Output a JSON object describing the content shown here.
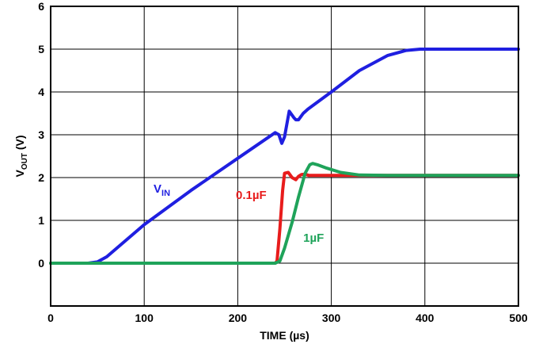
{
  "chart_data": {
    "type": "line",
    "title": "",
    "xlabel": "TIME (µs)",
    "ylabel": {
      "main": "V",
      "sub": "OUT",
      "unit": " (V)"
    },
    "xlim": [
      0,
      500
    ],
    "ylim": [
      -1,
      6
    ],
    "xticks": [
      0,
      100,
      200,
      300,
      400,
      500
    ],
    "yticks": [
      0,
      1,
      2,
      3,
      4,
      5,
      6
    ],
    "grid": true,
    "series": [
      {
        "name": {
          "main": "V",
          "sub": "IN"
        },
        "color": "#1f1fe0",
        "x": [
          0,
          20,
          40,
          50,
          60,
          100,
          150,
          200,
          240,
          244,
          247,
          250,
          255,
          260,
          262,
          265,
          270,
          275,
          300,
          330,
          360,
          380,
          395,
          400,
          420,
          450,
          500
        ],
        "y": [
          0,
          0,
          0,
          0.03,
          0.15,
          0.9,
          1.7,
          2.45,
          3.05,
          3.0,
          2.8,
          2.95,
          3.55,
          3.4,
          3.35,
          3.35,
          3.5,
          3.6,
          4.0,
          4.5,
          4.85,
          4.97,
          5.0,
          5.0,
          5.0,
          5.0,
          5.0
        ]
      },
      {
        "name": "0.1µF",
        "color": "#e81c1c",
        "x": [
          0,
          100,
          200,
          240,
          242,
          245,
          248,
          250,
          254,
          258,
          262,
          265,
          268,
          272,
          276,
          280,
          300,
          350,
          400,
          450,
          500
        ],
        "y": [
          0,
          0,
          0,
          0,
          0.05,
          0.8,
          1.7,
          2.1,
          2.12,
          2.0,
          1.95,
          2.03,
          2.07,
          2.08,
          2.05,
          2.05,
          2.05,
          2.05,
          2.05,
          2.05,
          2.05
        ]
      },
      {
        "name": "1µF",
        "color": "#1fa35a",
        "x": [
          0,
          100,
          200,
          240,
          245,
          250,
          258,
          265,
          272,
          277,
          280,
          285,
          295,
          310,
          330,
          360,
          400,
          450,
          500
        ],
        "y": [
          0,
          0,
          0,
          0,
          0.05,
          0.35,
          0.95,
          1.55,
          2.1,
          2.3,
          2.33,
          2.3,
          2.22,
          2.12,
          2.06,
          2.05,
          2.05,
          2.05,
          2.05
        ]
      }
    ],
    "annotations": [
      {
        "series": 0,
        "text": {
          "main": "V",
          "sub": "IN"
        },
        "color": "#1f1fe0",
        "x": 110,
        "y": 1.65
      },
      {
        "series": 1,
        "text": "0.1µF",
        "color": "#e81c1c",
        "x": 198,
        "y": 1.5
      },
      {
        "series": 2,
        "text": "1µF",
        "color": "#1fa35a",
        "x": 270,
        "y": 0.5
      }
    ]
  }
}
